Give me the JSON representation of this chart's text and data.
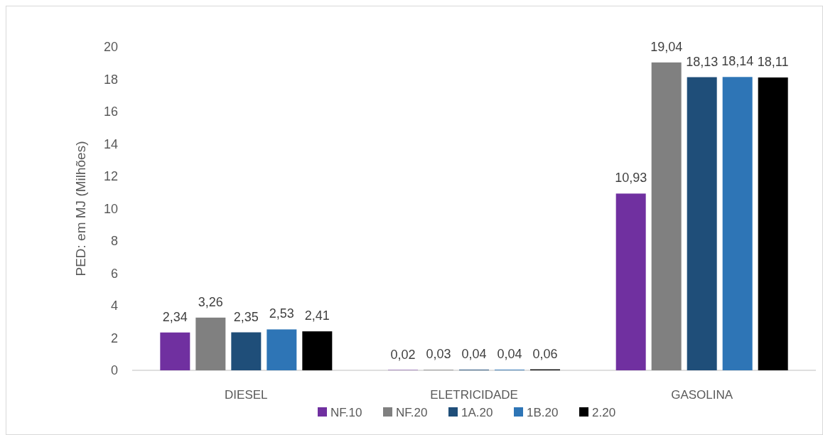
{
  "chart_data": {
    "type": "bar",
    "ylabel": "PED: em MJ (Milhões)",
    "categories": [
      "DIESEL",
      "ELETRICIDADE",
      "GASOLINA"
    ],
    "ylim": [
      0,
      20
    ],
    "yticks": [
      0,
      2,
      4,
      6,
      8,
      10,
      12,
      14,
      16,
      18,
      20
    ],
    "legend": "bottom",
    "series": [
      {
        "name": "NF.10",
        "color": "#7030a0",
        "values": [
          2.34,
          0.02,
          10.93
        ],
        "value_labels": [
          "2,34",
          "0,02",
          "10,93"
        ]
      },
      {
        "name": "NF.20",
        "color": "#808080",
        "values": [
          3.26,
          0.03,
          19.04
        ],
        "value_labels": [
          "3,26",
          "0,03",
          "19,04"
        ]
      },
      {
        "name": "1A.20",
        "color": "#1f4e79",
        "values": [
          2.35,
          0.04,
          18.13
        ],
        "value_labels": [
          "2,35",
          "0,04",
          "18,13"
        ]
      },
      {
        "name": "1B.20",
        "color": "#2e75b6",
        "values": [
          2.53,
          0.04,
          18.14
        ],
        "value_labels": [
          "2,53",
          "0,04",
          "18,14"
        ]
      },
      {
        "name": "2.20",
        "color": "#000000",
        "values": [
          2.41,
          0.06,
          18.11
        ],
        "value_labels": [
          "2,41",
          "0,06",
          "18,11"
        ]
      }
    ]
  }
}
